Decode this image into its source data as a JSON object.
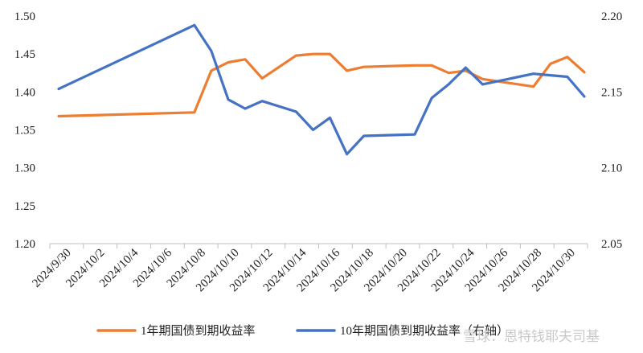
{
  "chart_data": {
    "type": "line",
    "x": [
      "2024/9/30",
      "2024/10/8",
      "2024/10/9",
      "2024/10/10",
      "2024/10/11",
      "2024/10/12",
      "2024/10/14",
      "2024/10/15",
      "2024/10/16",
      "2024/10/17",
      "2024/10/18",
      "2024/10/21",
      "2024/10/22",
      "2024/10/23",
      "2024/10/24",
      "2024/10/25",
      "2024/10/28",
      "2024/10/29",
      "2024/10/30",
      "2024/10/31"
    ],
    "x_ticks": [
      "2024/9/30",
      "2024/10/2",
      "2024/10/4",
      "2024/10/6",
      "2024/10/8",
      "2024/10/10",
      "2024/10/12",
      "2024/10/14",
      "2024/10/16",
      "2024/10/18",
      "2024/10/20",
      "2024/10/22",
      "2024/10/24",
      "2024/10/26",
      "2024/10/28",
      "2024/10/30"
    ],
    "series": [
      {
        "name": "1年期国债到期收益率",
        "axis": "left",
        "color": "#ED7D31",
        "values": [
          1.368,
          1.373,
          1.428,
          1.439,
          1.443,
          1.418,
          1.448,
          1.45,
          1.45,
          1.428,
          1.433,
          1.435,
          1.435,
          1.425,
          1.428,
          1.417,
          1.407,
          1.437,
          1.446,
          1.426
        ]
      },
      {
        "name": "10年期国债到期收益率（右轴）",
        "axis": "right",
        "color": "#4472C4",
        "values": [
          2.152,
          2.194,
          2.177,
          2.145,
          2.139,
          2.144,
          2.137,
          2.125,
          2.133,
          2.109,
          2.121,
          2.122,
          2.146,
          2.155,
          2.166,
          2.155,
          2.162,
          2.161,
          2.16,
          2.147
        ]
      }
    ],
    "y_left": {
      "min": 1.2,
      "max": 1.5,
      "ticks": [
        "1.20",
        "1.25",
        "1.30",
        "1.35",
        "1.40",
        "1.45",
        "1.50"
      ]
    },
    "y_right": {
      "min": 2.05,
      "max": 2.2,
      "ticks": [
        "2.05",
        "2.10",
        "2.15",
        "2.20"
      ]
    },
    "grid": false,
    "legend_position": "bottom"
  },
  "watermark": "雪球：恩特钱耶夫司基"
}
